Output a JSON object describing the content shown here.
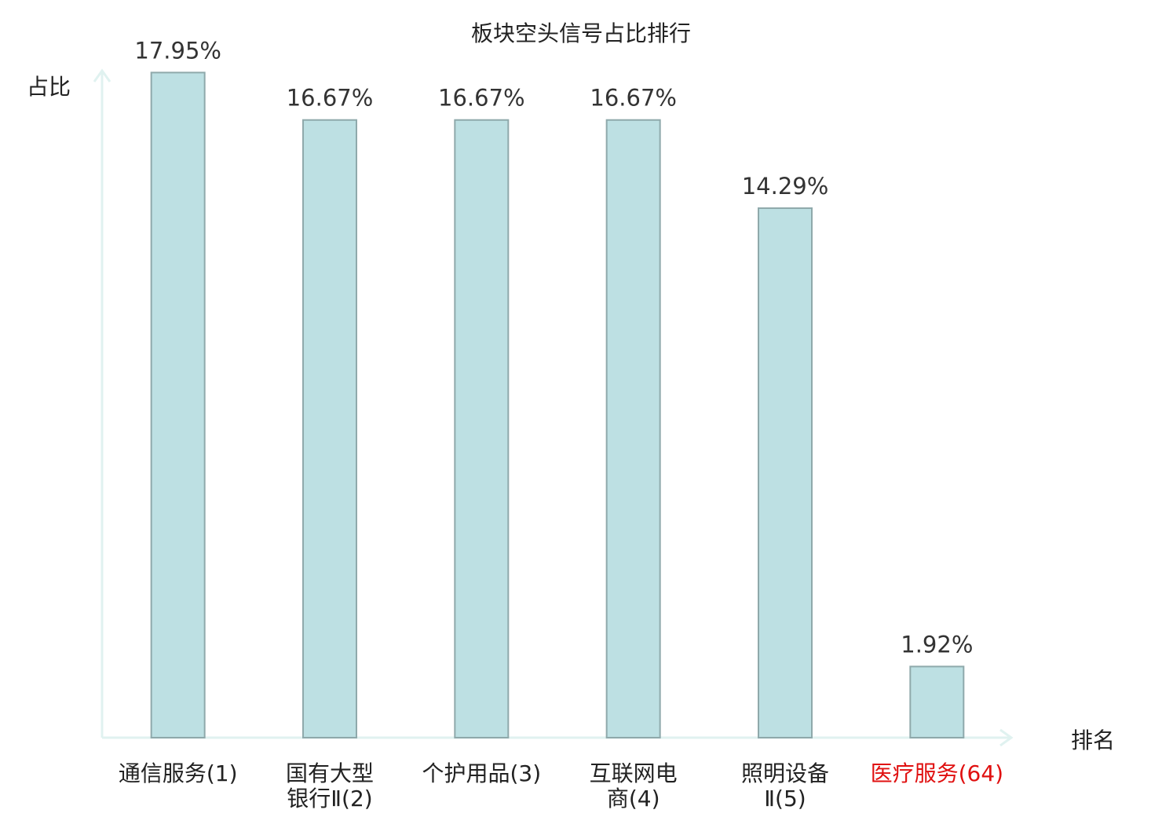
{
  "chart_data": {
    "type": "bar",
    "title": "板块空头信号占比排行",
    "y_label": "占比",
    "x_label": "排名",
    "categories": [
      "通信服务(1)",
      "国有大型\n银行Ⅱ(2)",
      "个护用品(3)",
      "互联网电\n商(4)",
      "照明设备\nⅡ(5)",
      "医疗服务(64)"
    ],
    "category_colors": [
      "#222222",
      "#222222",
      "#222222",
      "#222222",
      "#222222",
      "#e01010"
    ],
    "values": [
      17.95,
      16.67,
      16.67,
      16.67,
      14.29,
      1.92
    ],
    "value_labels": [
      "17.95%",
      "16.67%",
      "16.67%",
      "16.67%",
      "14.29%",
      "1.92%"
    ],
    "color": "#bde0e3",
    "ylim": [
      0,
      18
    ]
  }
}
